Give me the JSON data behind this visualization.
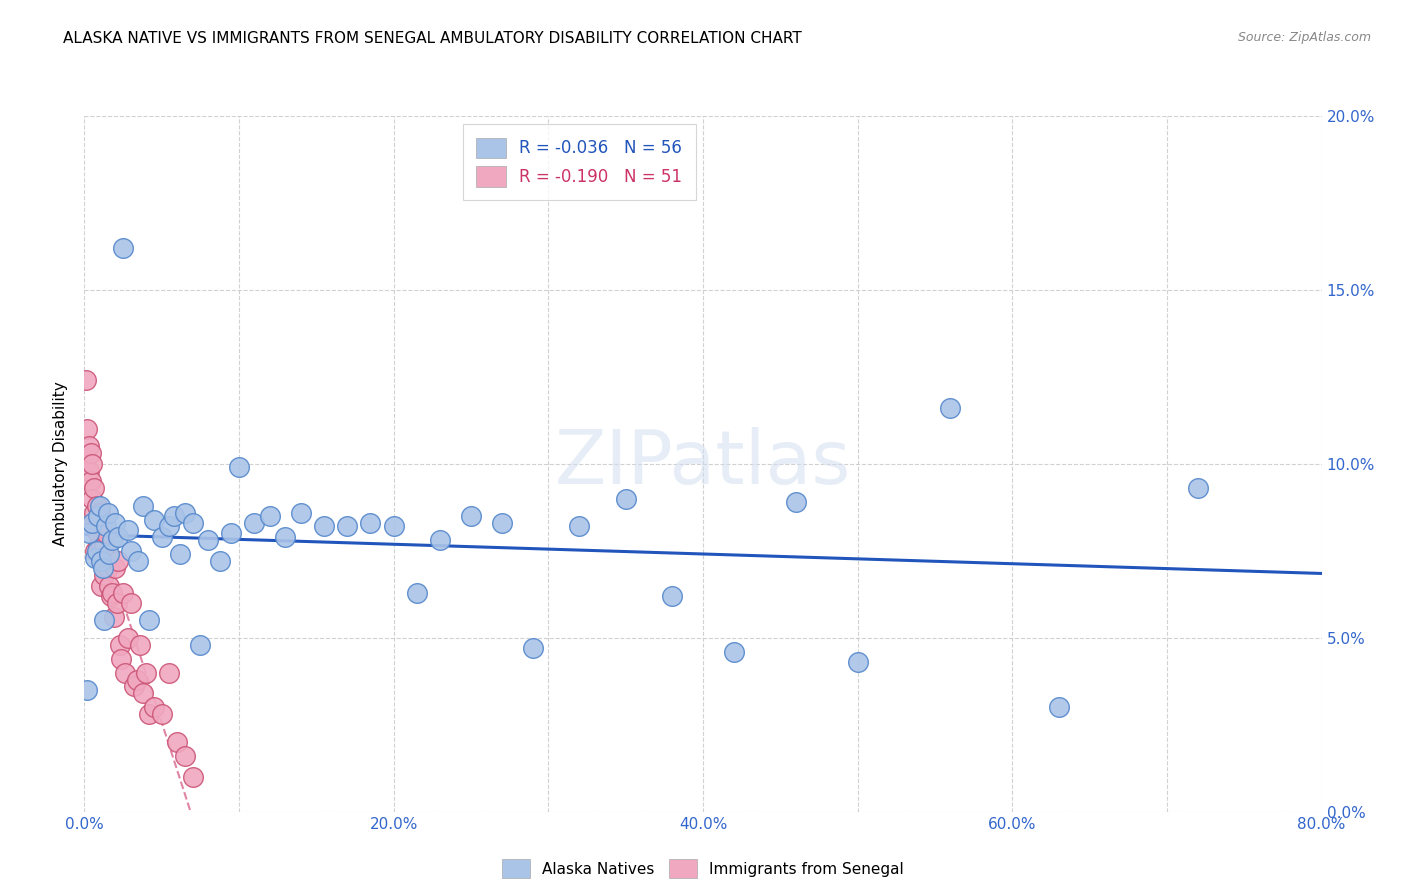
{
  "title": "ALASKA NATIVE VS IMMIGRANTS FROM SENEGAL AMBULATORY DISABILITY CORRELATION CHART",
  "source": "Source: ZipAtlas.com",
  "ylabel": "Ambulatory Disability",
  "xlim": [
    0,
    0.8
  ],
  "ylim": [
    0,
    0.2
  ],
  "xticks": [
    0.0,
    0.2,
    0.4,
    0.6,
    0.8
  ],
  "xticklabels": [
    "0.0%",
    "20.0%",
    "40.0%",
    "60.0%",
    "80.0%"
  ],
  "yticks": [
    0.0,
    0.05,
    0.1,
    0.15,
    0.2
  ],
  "yticklabels_right": [
    "0.0%",
    "5.0%",
    "10.0%",
    "15.0%",
    "20.0%"
  ],
  "alaska_color": "#aac4e8",
  "senegal_color": "#f0a8c0",
  "alaska_edge_color": "#5588cc",
  "senegal_edge_color": "#cc5577",
  "trendline_alaska_color": "#2255bb",
  "trendline_senegal_color": "#cc3366",
  "legend_text_color": "#2255bb",
  "legend_label_alaska": "Alaska Natives",
  "legend_label_senegal": "Immigrants from Senegal",
  "alaska_x": [
    0.002,
    0.003,
    0.005,
    0.007,
    0.008,
    0.009,
    0.01,
    0.011,
    0.012,
    0.013,
    0.014,
    0.015,
    0.016,
    0.018,
    0.02,
    0.022,
    0.025,
    0.028,
    0.03,
    0.035,
    0.038,
    0.042,
    0.045,
    0.05,
    0.055,
    0.058,
    0.062,
    0.065,
    0.07,
    0.075,
    0.08,
    0.088,
    0.095,
    0.1,
    0.11,
    0.12,
    0.13,
    0.14,
    0.155,
    0.17,
    0.185,
    0.2,
    0.215,
    0.23,
    0.25,
    0.27,
    0.29,
    0.32,
    0.35,
    0.38,
    0.42,
    0.46,
    0.5,
    0.56,
    0.63,
    0.72
  ],
  "alaska_y": [
    0.035,
    0.08,
    0.083,
    0.073,
    0.075,
    0.085,
    0.088,
    0.072,
    0.07,
    0.055,
    0.082,
    0.086,
    0.074,
    0.078,
    0.083,
    0.079,
    0.162,
    0.081,
    0.075,
    0.072,
    0.088,
    0.055,
    0.084,
    0.079,
    0.082,
    0.085,
    0.074,
    0.086,
    0.083,
    0.048,
    0.078,
    0.072,
    0.08,
    0.099,
    0.083,
    0.085,
    0.079,
    0.086,
    0.082,
    0.082,
    0.083,
    0.082,
    0.063,
    0.078,
    0.085,
    0.083,
    0.047,
    0.082,
    0.09,
    0.062,
    0.046,
    0.089,
    0.043,
    0.116,
    0.03,
    0.093
  ],
  "senegal_x": [
    0.001,
    0.002,
    0.003,
    0.003,
    0.004,
    0.004,
    0.005,
    0.005,
    0.006,
    0.006,
    0.007,
    0.007,
    0.008,
    0.008,
    0.009,
    0.009,
    0.01,
    0.01,
    0.011,
    0.011,
    0.012,
    0.012,
    0.013,
    0.013,
    0.014,
    0.015,
    0.016,
    0.017,
    0.018,
    0.019,
    0.02,
    0.021,
    0.022,
    0.023,
    0.024,
    0.025,
    0.026,
    0.028,
    0.03,
    0.032,
    0.034,
    0.036,
    0.038,
    0.04,
    0.042,
    0.045,
    0.05,
    0.055,
    0.06,
    0.065,
    0.07
  ],
  "senegal_y": [
    0.124,
    0.11,
    0.098,
    0.105,
    0.103,
    0.095,
    0.09,
    0.1,
    0.086,
    0.093,
    0.083,
    0.075,
    0.088,
    0.082,
    0.076,
    0.08,
    0.074,
    0.086,
    0.076,
    0.065,
    0.072,
    0.083,
    0.076,
    0.068,
    0.08,
    0.07,
    0.065,
    0.062,
    0.063,
    0.056,
    0.07,
    0.06,
    0.072,
    0.048,
    0.044,
    0.063,
    0.04,
    0.05,
    0.06,
    0.036,
    0.038,
    0.048,
    0.034,
    0.04,
    0.028,
    0.03,
    0.028,
    0.04,
    0.02,
    0.016,
    0.01
  ],
  "watermark": "ZIPatlas",
  "background_color": "#ffffff",
  "title_fontsize": 11,
  "tick_color": "#3366cc",
  "grid_color": "#cccccc"
}
